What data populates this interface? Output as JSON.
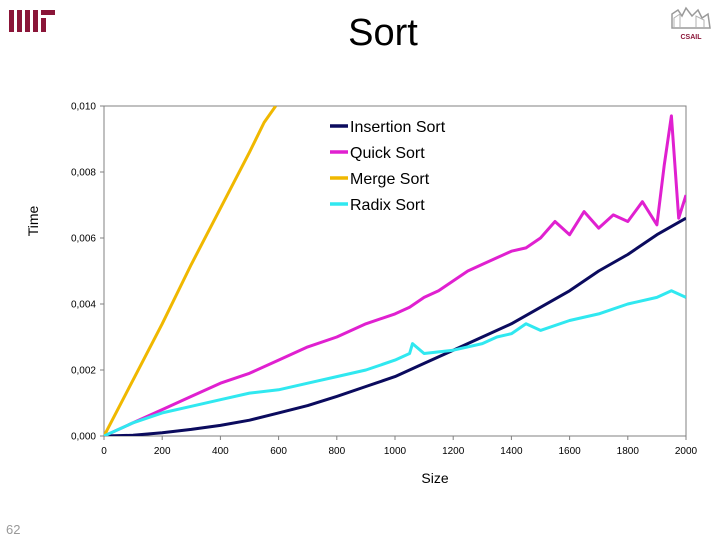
{
  "slide": {
    "title": "Sort",
    "page_number": "62",
    "logo_left": "MIT",
    "logo_right": "CSAIL"
  },
  "colors": {
    "insertion": "#0b0b5e",
    "quick": "#e020d0",
    "merge": "#f0b800",
    "radix": "#30e8f0"
  },
  "chart_data": {
    "type": "line",
    "title": "",
    "xlabel": "Size",
    "ylabel": "Time",
    "xlim": [
      0,
      2000
    ],
    "ylim": [
      0,
      0.01
    ],
    "xticks": [
      0,
      200,
      400,
      600,
      800,
      1000,
      1200,
      1400,
      1600,
      1800,
      2000
    ],
    "xtick_labels": [
      "0",
      "200",
      "400",
      "600",
      "800",
      "1000",
      "1200",
      "1400",
      "1600",
      "1800",
      "2000"
    ],
    "yticks": [
      0,
      0.002,
      0.004,
      0.006,
      0.008,
      0.01
    ],
    "ytick_labels": [
      "0,000",
      "0,002",
      "0,004",
      "0,006",
      "0,008",
      "0,010"
    ],
    "grid": false,
    "legend": "top-right",
    "series": [
      {
        "name": "Insertion Sort",
        "color": "#0b0b5e",
        "x": [
          0,
          100,
          200,
          300,
          400,
          500,
          600,
          700,
          800,
          900,
          1000,
          1100,
          1200,
          1300,
          1400,
          1500,
          1600,
          1700,
          1800,
          1900,
          2000
        ],
        "y": [
          0,
          2e-05,
          0.0001,
          0.0002,
          0.00032,
          0.00048,
          0.0007,
          0.00092,
          0.0012,
          0.0015,
          0.0018,
          0.0022,
          0.0026,
          0.003,
          0.0034,
          0.0039,
          0.0044,
          0.005,
          0.0055,
          0.0061,
          0.0066
        ]
      },
      {
        "name": "Quick Sort",
        "color": "#e020d0",
        "x": [
          0,
          100,
          200,
          300,
          400,
          500,
          600,
          700,
          800,
          900,
          1000,
          1050,
          1100,
          1150,
          1200,
          1250,
          1300,
          1350,
          1400,
          1450,
          1500,
          1550,
          1600,
          1650,
          1700,
          1750,
          1800,
          1850,
          1900,
          1925,
          1950,
          1975,
          2000
        ],
        "y": [
          0,
          0.0004,
          0.0008,
          0.0012,
          0.0016,
          0.0019,
          0.0023,
          0.0027,
          0.003,
          0.0034,
          0.0037,
          0.0039,
          0.0042,
          0.0044,
          0.0047,
          0.005,
          0.0052,
          0.0054,
          0.0056,
          0.0057,
          0.006,
          0.0065,
          0.0061,
          0.0068,
          0.0063,
          0.0067,
          0.0065,
          0.0071,
          0.0064,
          0.0082,
          0.0097,
          0.0066,
          0.0073
        ]
      },
      {
        "name": "Merge Sort",
        "color": "#f0b800",
        "x": [
          0,
          100,
          200,
          300,
          400,
          500,
          550,
          590
        ],
        "y": [
          0,
          0.0017,
          0.0034,
          0.0052,
          0.0069,
          0.0086,
          0.0095,
          0.01
        ]
      },
      {
        "name": "Radix Sort",
        "color": "#30e8f0",
        "x": [
          0,
          100,
          200,
          300,
          400,
          500,
          600,
          700,
          800,
          900,
          1000,
          1050,
          1060,
          1100,
          1200,
          1300,
          1350,
          1400,
          1450,
          1500,
          1600,
          1700,
          1800,
          1900,
          1950,
          2000
        ],
        "y": [
          0,
          0.0004,
          0.0007,
          0.0009,
          0.0011,
          0.0013,
          0.0014,
          0.0016,
          0.0018,
          0.002,
          0.0023,
          0.0025,
          0.0028,
          0.0025,
          0.0026,
          0.0028,
          0.003,
          0.0031,
          0.0034,
          0.0032,
          0.0035,
          0.0037,
          0.004,
          0.0042,
          0.0044,
          0.0042
        ]
      }
    ]
  }
}
